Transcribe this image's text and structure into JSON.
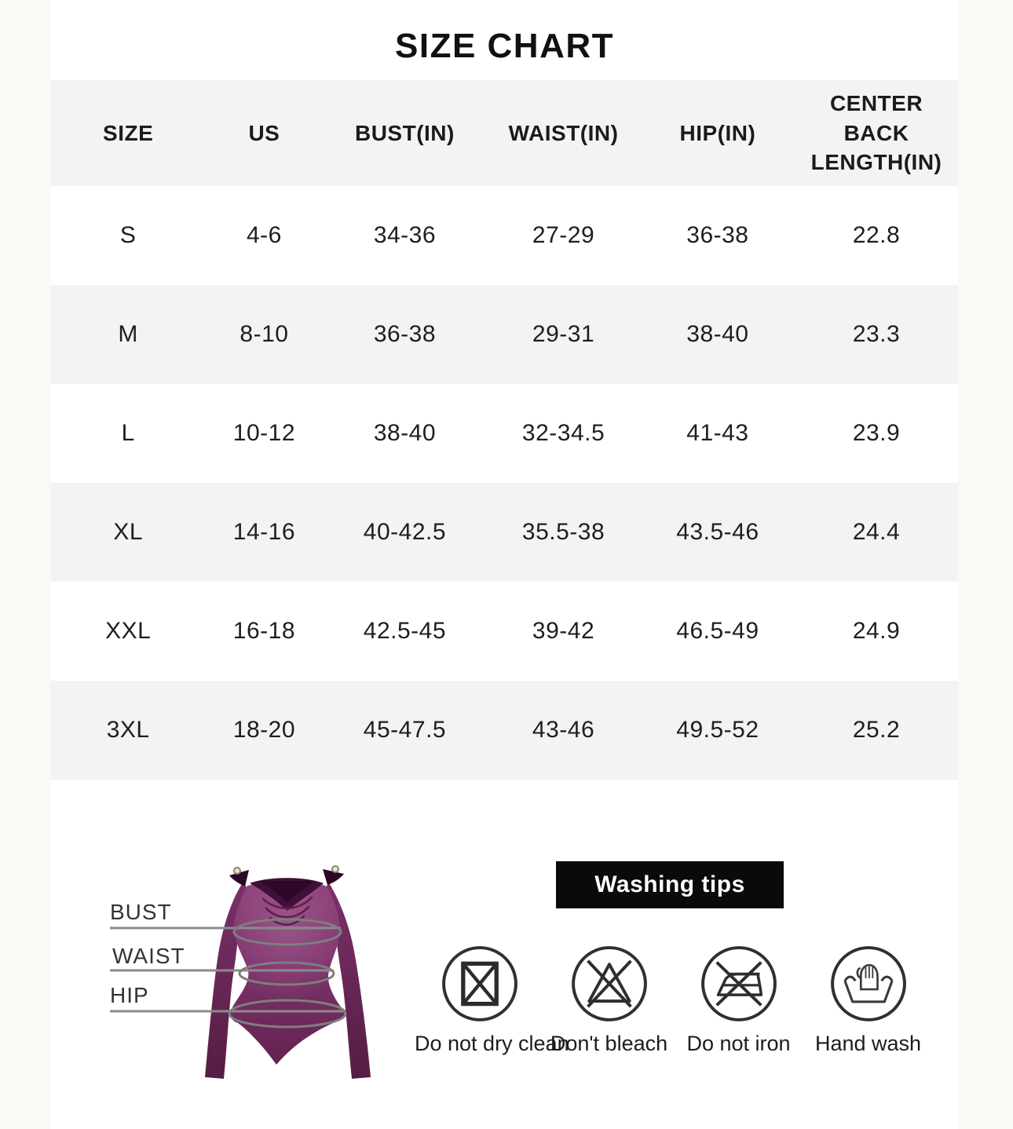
{
  "title": "SIZE CHART",
  "table": {
    "columns": [
      "SIZE",
      "US",
      "BUST(IN)",
      "WAIST(IN)",
      "HIP(IN)",
      "CENTER BACK LENGTH(IN)"
    ],
    "column_keys": [
      "size",
      "us",
      "bust",
      "waist",
      "hip",
      "center-back-length"
    ],
    "rows": [
      [
        "S",
        "4-6",
        "34-36",
        "27-29",
        "36-38",
        "22.8"
      ],
      [
        "M",
        "8-10",
        "36-38",
        "29-31",
        "38-40",
        "23.3"
      ],
      [
        "L",
        "10-12",
        "38-40",
        "32-34.5",
        "41-43",
        "23.9"
      ],
      [
        "XL",
        "14-16",
        "40-42.5",
        "35.5-38",
        "43.5-46",
        "24.4"
      ],
      [
        "XXL",
        "16-18",
        "42.5-45",
        "39-42",
        "46.5-49",
        "24.9"
      ],
      [
        "3XL",
        "18-20",
        "45-47.5",
        "43-46",
        "49.5-52",
        "25.2"
      ]
    ]
  },
  "measurement_guide": {
    "bust_label": "BUST",
    "waist_label": "WAIST",
    "hip_label": "HIP"
  },
  "washing_tips": {
    "banner": "Washing tips",
    "items": [
      {
        "icon": "do-not-dry-clean-icon",
        "label": "Do not dry clean"
      },
      {
        "icon": "do-not-bleach-icon",
        "label": "Don't bleach"
      },
      {
        "icon": "do-not-iron-icon",
        "label": "Do not iron"
      },
      {
        "icon": "hand-wash-icon",
        "label": "Hand wash"
      }
    ]
  },
  "colors": {
    "page_border": "#fbf9f4",
    "row_stripe": "#f3f3f3",
    "banner_bg": "#0a0a0a",
    "garment_purple": "#7b3169",
    "measure_line": "#8b8b8b"
  }
}
